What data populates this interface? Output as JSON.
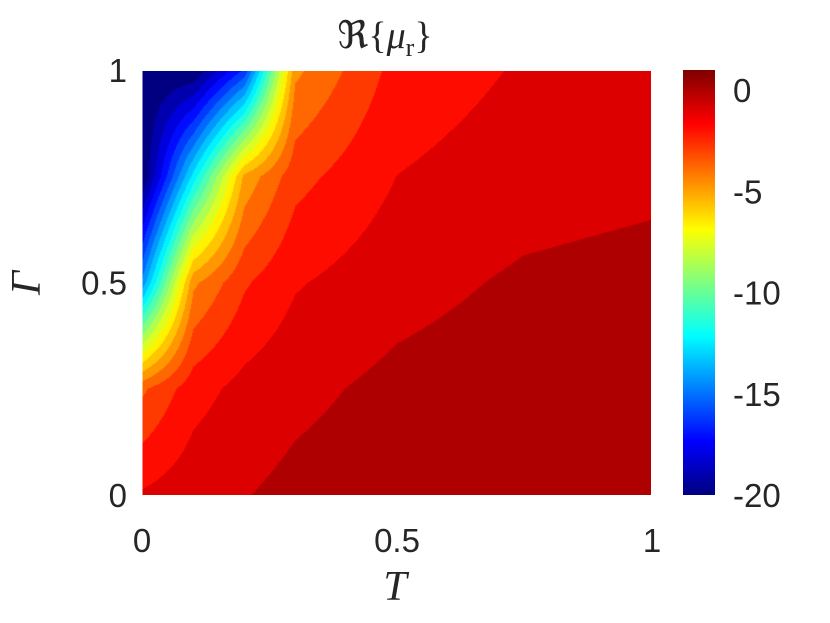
{
  "chart_data": {
    "type": "heatmap",
    "title": "ℜ{μᵣ}",
    "title_parts": {
      "prefix": "ℜ{",
      "symbol": "μ",
      "subscript": "r",
      "suffix": "}"
    },
    "xlabel": "T",
    "ylabel": "Γ",
    "xlim": [
      0,
      1
    ],
    "ylim": [
      0,
      1
    ],
    "x_ticks": [
      0,
      0.5,
      1
    ],
    "x_tick_labels": [
      "0",
      "0.5",
      "1"
    ],
    "y_ticks": [
      0,
      0.5,
      1
    ],
    "y_tick_labels": [
      "0",
      "0.5",
      "1"
    ],
    "colormap": "jet",
    "colorbar": {
      "position": "right",
      "clim": [
        -20,
        1
      ],
      "ticks": [
        0,
        -5,
        -10,
        -15,
        -20
      ],
      "tick_labels": [
        "0",
        "-5",
        "-10",
        "-15",
        "-20"
      ]
    },
    "grid": false,
    "z_samples": {
      "description_axes": "rows = Gamma values, columns = T values",
      "T": [
        0,
        0.1,
        0.2,
        0.3,
        0.5,
        0.75,
        1.0
      ],
      "Gamma": [
        1.0,
        0.75,
        0.5,
        0.25,
        0.0
      ],
      "values": [
        [
          -20,
          -20,
          -16,
          -4,
          -1.5,
          -0.8,
          -0.5
        ],
        [
          -20,
          -12,
          -4.5,
          -2.2,
          -0.9,
          -0.4,
          -0.2
        ],
        [
          -14,
          -4,
          -2,
          -1,
          -0.3,
          0.2,
          0.4
        ],
        [
          -3,
          -1.3,
          -0.6,
          -0.2,
          0.3,
          0.6,
          0.7
        ],
        [
          -0.8,
          -0.3,
          0.0,
          0.3,
          0.6,
          0.8,
          0.9
        ]
      ]
    }
  }
}
